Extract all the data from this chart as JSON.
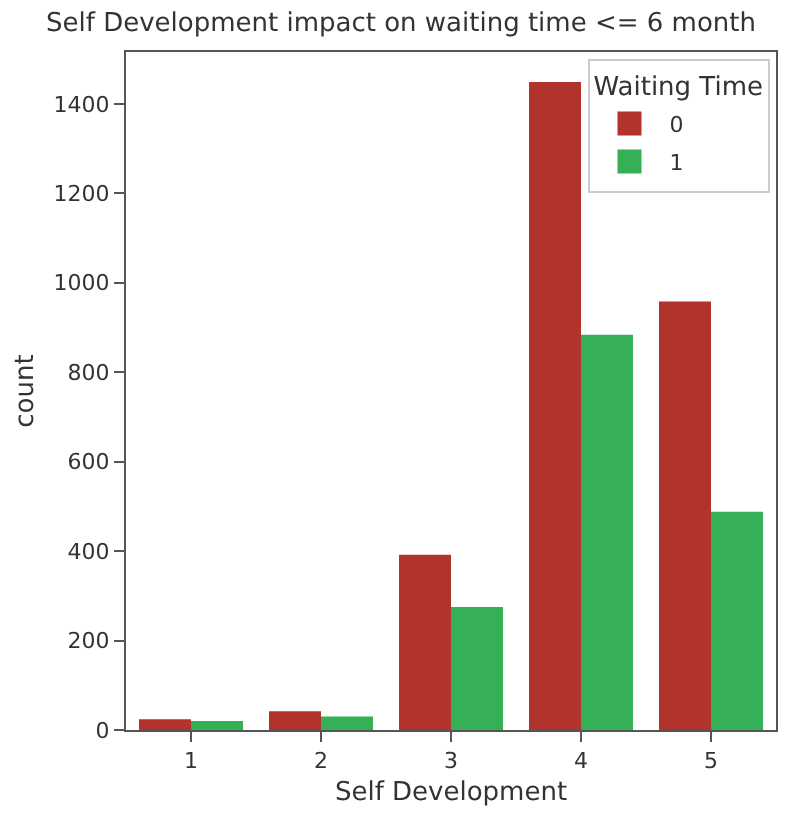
{
  "chart_data": {
    "type": "bar",
    "title": "Self Development impact on waiting time <= 6 month",
    "xlabel": "Self Development",
    "ylabel": "count",
    "legend_title": "Waiting Time",
    "categories": [
      "1",
      "2",
      "3",
      "4",
      "5"
    ],
    "series": [
      {
        "name": "0",
        "color": "#b0332c",
        "values": [
          24,
          42,
          392,
          1449,
          958
        ]
      },
      {
        "name": "1",
        "color": "#35b057",
        "values": [
          20,
          30,
          275,
          884,
          488
        ]
      }
    ],
    "ylim": [
      0,
      1516
    ],
    "yticks": [
      0,
      200,
      400,
      600,
      800,
      1000,
      1200,
      1400
    ],
    "legend": "top right"
  }
}
